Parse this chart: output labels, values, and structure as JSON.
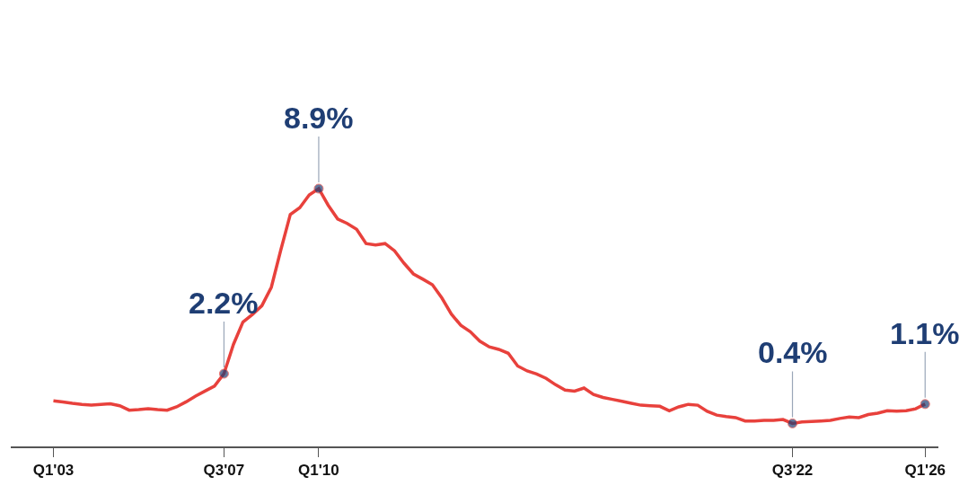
{
  "chart_data": {
    "type": "line",
    "categories": [
      "Q1'03",
      null,
      null,
      null,
      null,
      null,
      null,
      null,
      null,
      null,
      null,
      null,
      null,
      null,
      null,
      null,
      null,
      null,
      "Q3'07",
      null,
      null,
      null,
      null,
      null,
      null,
      null,
      null,
      null,
      "Q1'10",
      null,
      null,
      null,
      null,
      null,
      null,
      null,
      null,
      null,
      null,
      null,
      null,
      null,
      null,
      null,
      null,
      null,
      null,
      null,
      null,
      null,
      null,
      null,
      null,
      null,
      null,
      null,
      null,
      null,
      null,
      null,
      null,
      null,
      null,
      null,
      null,
      null,
      null,
      null,
      null,
      null,
      null,
      null,
      null,
      null,
      null,
      null,
      null,
      null,
      "Q3'22",
      null,
      null,
      null,
      null,
      null,
      null,
      null,
      null,
      null,
      null,
      null,
      null,
      null,
      "Q1'26"
    ],
    "series": [
      {
        "color": "#e8413c",
        "values": [
          1.22,
          1.18,
          1.13,
          1.09,
          1.06,
          1.09,
          1.11,
          1.04,
          0.88,
          0.9,
          0.93,
          0.9,
          0.88,
          1.0,
          1.18,
          1.39,
          1.57,
          1.75,
          2.2,
          3.26,
          4.07,
          4.34,
          4.66,
          5.33,
          6.68,
          7.96,
          8.21,
          8.67,
          8.9,
          8.3,
          7.8,
          7.64,
          7.43,
          6.91,
          6.86,
          6.91,
          6.65,
          6.2,
          5.81,
          5.62,
          5.42,
          4.94,
          4.36,
          3.95,
          3.72,
          3.38,
          3.17,
          3.08,
          2.94,
          2.48,
          2.3,
          2.19,
          2.03,
          1.8,
          1.61,
          1.57,
          1.68,
          1.45,
          1.34,
          1.27,
          1.2,
          1.13,
          1.06,
          1.04,
          1.02,
          0.86,
          1.0,
          1.09,
          1.06,
          0.84,
          0.7,
          0.65,
          0.61,
          0.49,
          0.49,
          0.51,
          0.51,
          0.54,
          0.4,
          0.45,
          0.47,
          0.49,
          0.51,
          0.58,
          0.63,
          0.61,
          0.72,
          0.77,
          0.86,
          0.84,
          0.86,
          0.93,
          1.1
        ],
        "value_labels": [
          null,
          null,
          null,
          null,
          null,
          null,
          null,
          null,
          null,
          null,
          null,
          null,
          null,
          null,
          null,
          null,
          null,
          null,
          "2.2%",
          null,
          null,
          null,
          null,
          null,
          null,
          null,
          null,
          null,
          "8.9%",
          null,
          null,
          null,
          null,
          null,
          null,
          null,
          null,
          null,
          null,
          null,
          null,
          null,
          null,
          null,
          null,
          null,
          null,
          null,
          null,
          null,
          null,
          null,
          null,
          null,
          null,
          null,
          null,
          null,
          null,
          null,
          null,
          null,
          null,
          null,
          null,
          null,
          null,
          null,
          null,
          null,
          null,
          null,
          null,
          null,
          null,
          null,
          null,
          null,
          "0.4%",
          null,
          null,
          null,
          null,
          null,
          null,
          null,
          null,
          null,
          null,
          null,
          null,
          null,
          "1.1%"
        ]
      }
    ],
    "tick_labels": "x",
    "line_style": "solid"
  }
}
